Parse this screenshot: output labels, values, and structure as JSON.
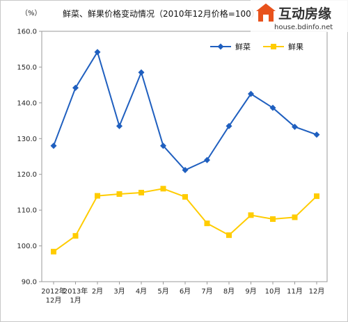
{
  "chart_data": {
    "type": "line",
    "title": "鲜菜、鲜果价格变动情况（2010年12月价格=100）",
    "unit_label": "（%）",
    "ylim": [
      90,
      160
    ],
    "y_ticks": [
      "160.0",
      "150.0",
      "140.0",
      "130.0",
      "120.0",
      "110.0",
      "100.0",
      "90.0"
    ],
    "y_tick_values": [
      160,
      150,
      140,
      130,
      120,
      110,
      100,
      90
    ],
    "categories": [
      [
        "2012年",
        "12月"
      ],
      [
        "2013年",
        "1月"
      ],
      [
        "2月"
      ],
      [
        "3月"
      ],
      [
        "4月"
      ],
      [
        "5月"
      ],
      [
        "6月"
      ],
      [
        "7月"
      ],
      [
        "8月"
      ],
      [
        "9月"
      ],
      [
        "10月"
      ],
      [
        "11月"
      ],
      [
        "12月"
      ]
    ],
    "legend_position": "top-right",
    "series": [
      {
        "name": "鲜菜",
        "color": "#1f5fbf",
        "marker": "diamond",
        "values": [
          128.0,
          144.2,
          154.2,
          133.5,
          148.5,
          128.0,
          121.2,
          124.0,
          133.5,
          142.5,
          138.6,
          133.3,
          131.1
        ]
      },
      {
        "name": "鲜果",
        "color": "#ffcc00",
        "marker": "square",
        "values": [
          98.4,
          102.8,
          114.0,
          114.5,
          114.9,
          116.0,
          113.7,
          106.3,
          103.0,
          108.6,
          107.5,
          108.0,
          113.9
        ]
      }
    ]
  },
  "watermark": {
    "brand": "互动房缘",
    "url": "house.bdinfo.net",
    "icon": "house-logo-icon",
    "accent": "#e8521c"
  }
}
